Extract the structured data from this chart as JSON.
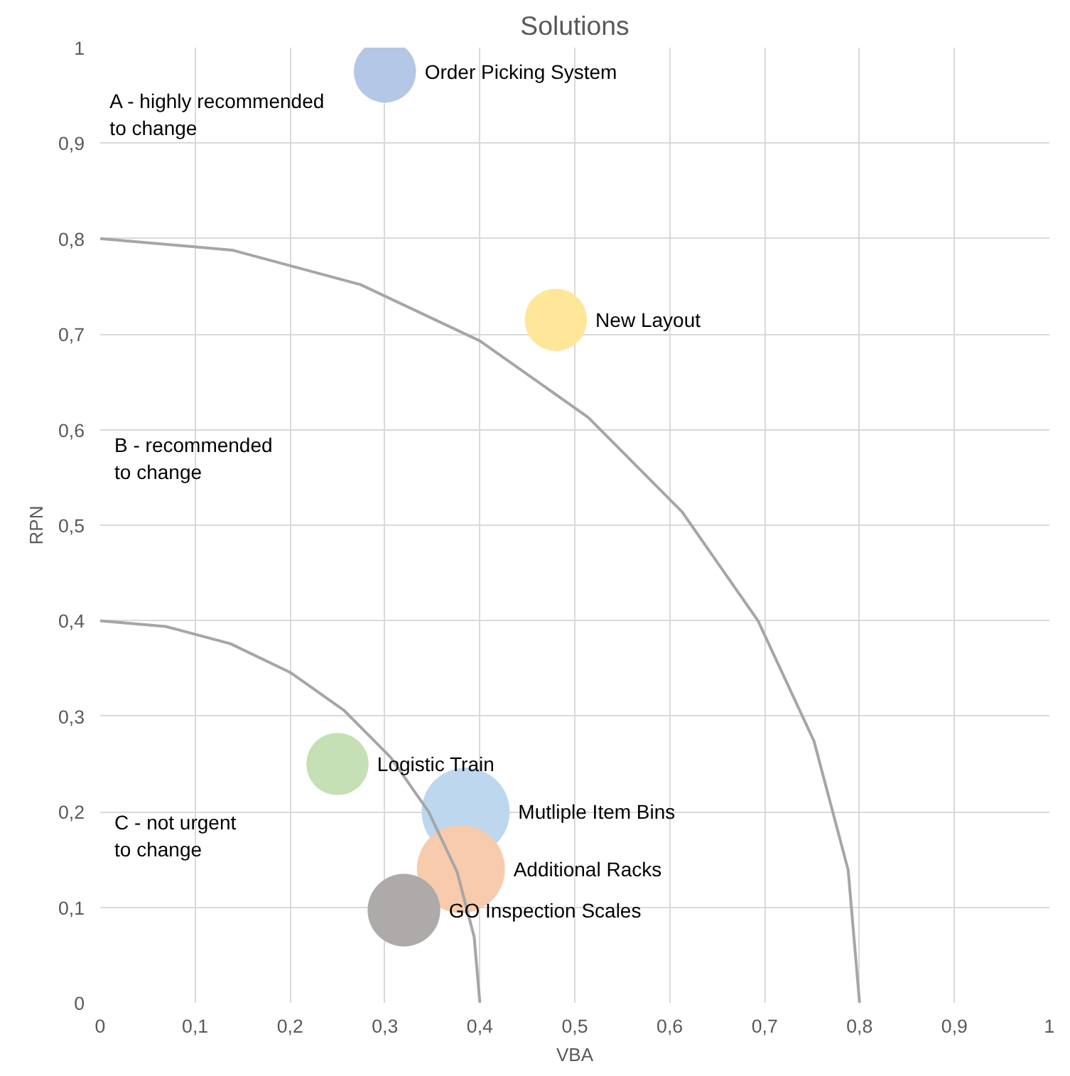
{
  "chart_data": {
    "type": "bubble",
    "title": "Solutions",
    "xlabel": "VBA",
    "ylabel": "RPN",
    "xlim": [
      0,
      1
    ],
    "ylim": [
      0,
      1
    ],
    "xticks": [
      0,
      {
        "value": 0.1,
        "label": "0,1"
      },
      {
        "value": 0.2,
        "label": "0,2"
      },
      {
        "value": 0.3,
        "label": "0,3"
      },
      {
        "value": 0.4,
        "label": "0,4"
      },
      {
        "value": 0.5,
        "label": "0,5"
      },
      {
        "value": 0.6,
        "label": "0,6"
      },
      {
        "value": 0.7,
        "label": "0,7"
      },
      {
        "value": 0.8,
        "label": "0,8"
      },
      {
        "value": 0.9,
        "label": "0,9"
      },
      1
    ],
    "yticks": [
      0,
      {
        "value": 0.1,
        "label": "0,1"
      },
      {
        "value": 0.2,
        "label": "0,2"
      },
      {
        "value": 0.3,
        "label": "0,3"
      },
      {
        "value": 0.4,
        "label": "0,4"
      },
      {
        "value": 0.5,
        "label": "0,5"
      },
      {
        "value": 0.6,
        "label": "0,6"
      },
      {
        "value": 0.7,
        "label": "0,7"
      },
      {
        "value": 0.8,
        "label": "0,8"
      },
      {
        "value": 0.9,
        "label": "0,9"
      },
      1
    ],
    "grid": true,
    "annotations": [
      "A - highly recommended\nto change",
      "B - recommended\nto change",
      "C - not urgent\nto change"
    ],
    "series": [
      {
        "name": "Order Picking System",
        "color": "#b4c7e7",
        "x": [
          0.3
        ],
        "values": [
          0.975
        ],
        "sizes": [
          0.5
        ]
      },
      {
        "name": "New Layout",
        "color": "#ffe699",
        "x": [
          0.48
        ],
        "values": [
          0.715
        ],
        "sizes": [
          0.5
        ]
      },
      {
        "name": "Logistic Train",
        "color": "#c5e0b4",
        "x": [
          0.25
        ],
        "values": [
          0.25
        ],
        "sizes": [
          0.5
        ]
      },
      {
        "name": "Mutliple Item Bins",
        "color": "#bdd7ee",
        "x": [
          0.385
        ],
        "values": [
          0.2
        ],
        "sizes": [
          1
        ]
      },
      {
        "name": "Additional Racks",
        "color": "#f8cbad",
        "x": [
          0.38
        ],
        "values": [
          0.14
        ],
        "sizes": [
          1
        ]
      },
      {
        "name": "GO Inspection Scales",
        "color": "#aeaaaa",
        "x": [
          0.32
        ],
        "values": [
          0.097
        ],
        "sizes": [
          0.68
        ]
      },
      {
        "type": "line",
        "color": "#a6a6a6",
        "x": [
          0.8,
          0.788,
          0.752,
          0.693,
          0.613,
          0.514,
          0.4,
          0.274,
          0.139,
          0
        ],
        "values": [
          0,
          0.139,
          0.274,
          0.4,
          0.514,
          0.613,
          0.693,
          0.752,
          0.788,
          0.8
        ]
      },
      {
        "type": "line",
        "color": "#a6a6a6",
        "x": [
          0.4,
          0.394,
          0.376,
          0.346,
          0.306,
          0.257,
          0.2,
          0.137,
          0.069,
          0
        ],
        "values": [
          0,
          0.069,
          0.137,
          0.2,
          0.257,
          0.306,
          0.346,
          0.376,
          0.394,
          0.4
        ]
      }
    ]
  }
}
